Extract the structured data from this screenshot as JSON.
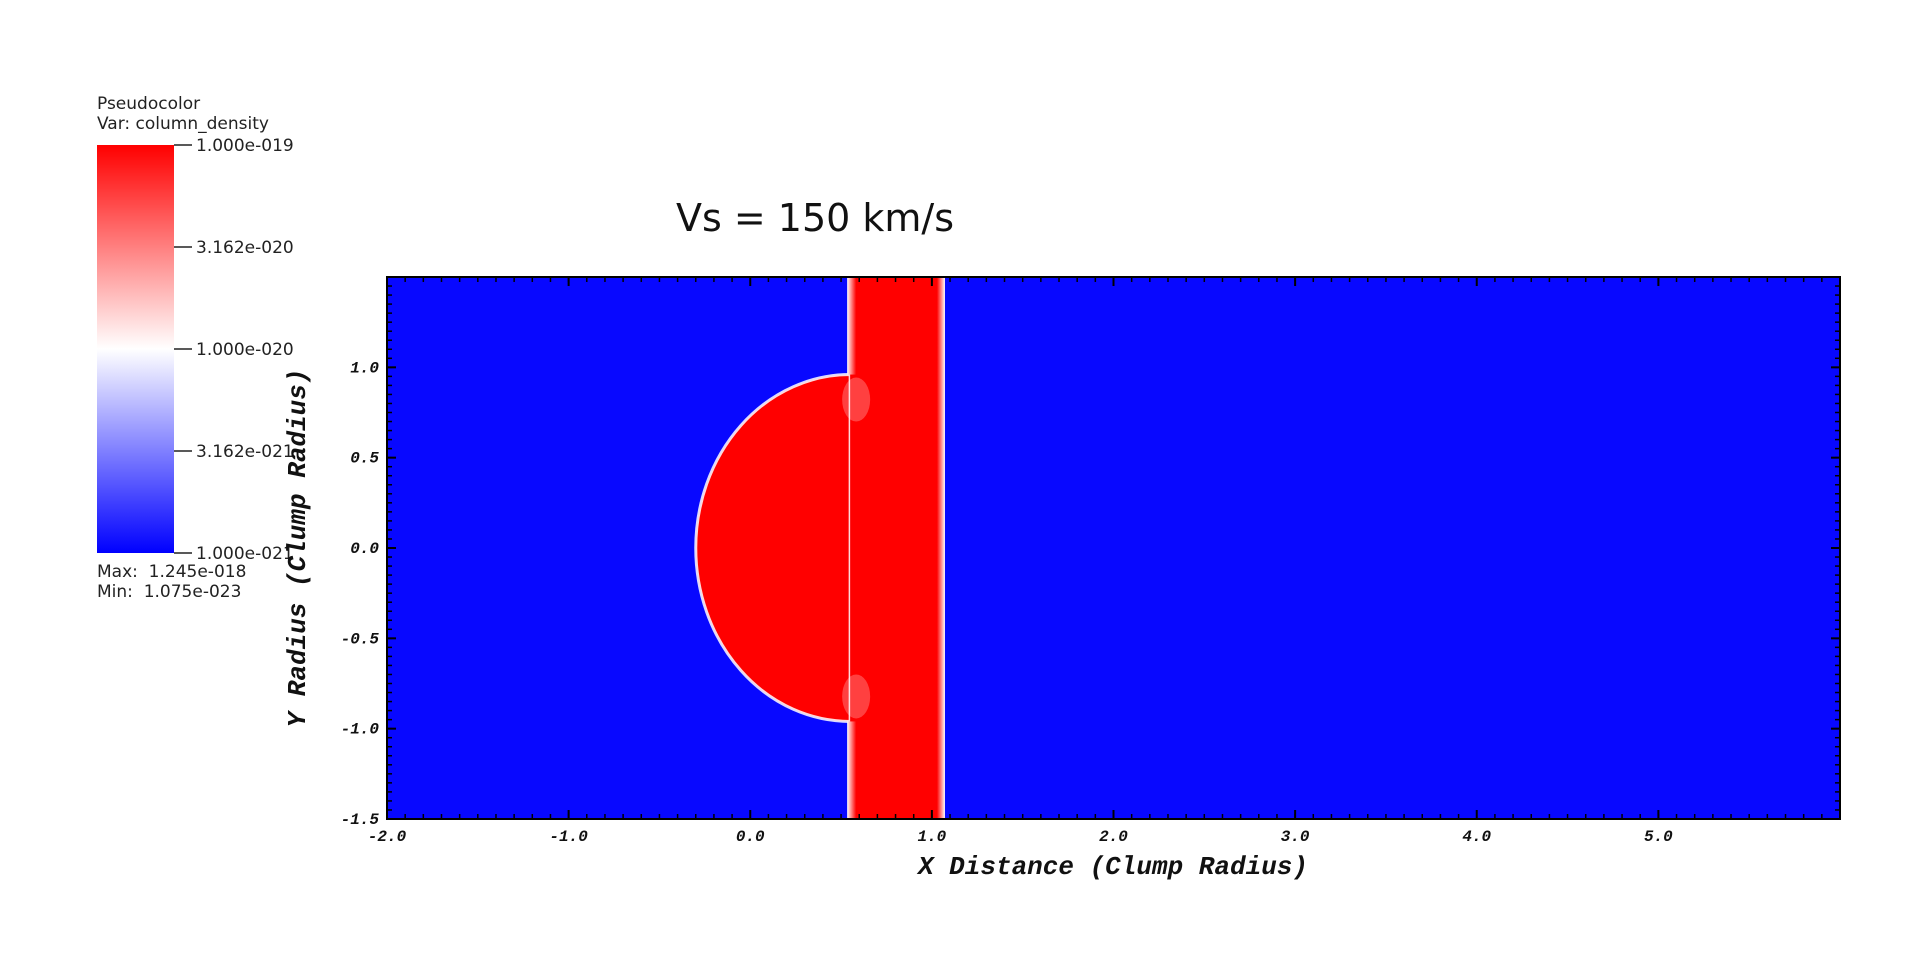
{
  "legend": {
    "heading": "Pseudocolor",
    "variable": "Var: column_density",
    "tick_labels": [
      "1.000e-019",
      "3.162e-020",
      "1.000e-020",
      "3.162e-021",
      "1.000e-021"
    ],
    "max_label": "Max:  1.245e-018",
    "min_label": "Min:  1.075e-023",
    "colors": {
      "high": "#ff0000",
      "mid": "#ffffff",
      "low": "#0000ff"
    }
  },
  "chart_data": {
    "type": "heatmap",
    "title": "Vs = 150 km/s",
    "xlabel": "X Distance (Clump Radius)",
    "ylabel": "Y Radius (Clump Radius)",
    "xlim": [
      -2.0,
      6.0
    ],
    "ylim": [
      -1.5,
      1.5
    ],
    "x_ticks": [
      -2.0,
      -1.0,
      0.0,
      1.0,
      2.0,
      3.0,
      4.0,
      5.0
    ],
    "x_tick_labels": [
      "-2.0",
      "-1.0",
      "0.0",
      "1.0",
      "2.0",
      "3.0",
      "4.0",
      "5.0"
    ],
    "y_ticks": [
      -1.5,
      -1.0,
      -0.5,
      0.0,
      0.5,
      1.0
    ],
    "y_tick_labels": [
      "-1.5",
      "-1.0",
      "-0.5",
      "0.0",
      "0.5",
      "1.0"
    ],
    "background_color": "#0808ff",
    "feature_color": "#ff0000",
    "shock_slab": {
      "x_min": 0.55,
      "x_max": 1.05
    },
    "clump": {
      "left_x": -0.3,
      "right_x": 0.55,
      "y_top": 0.96,
      "y_bottom": -0.96
    }
  }
}
